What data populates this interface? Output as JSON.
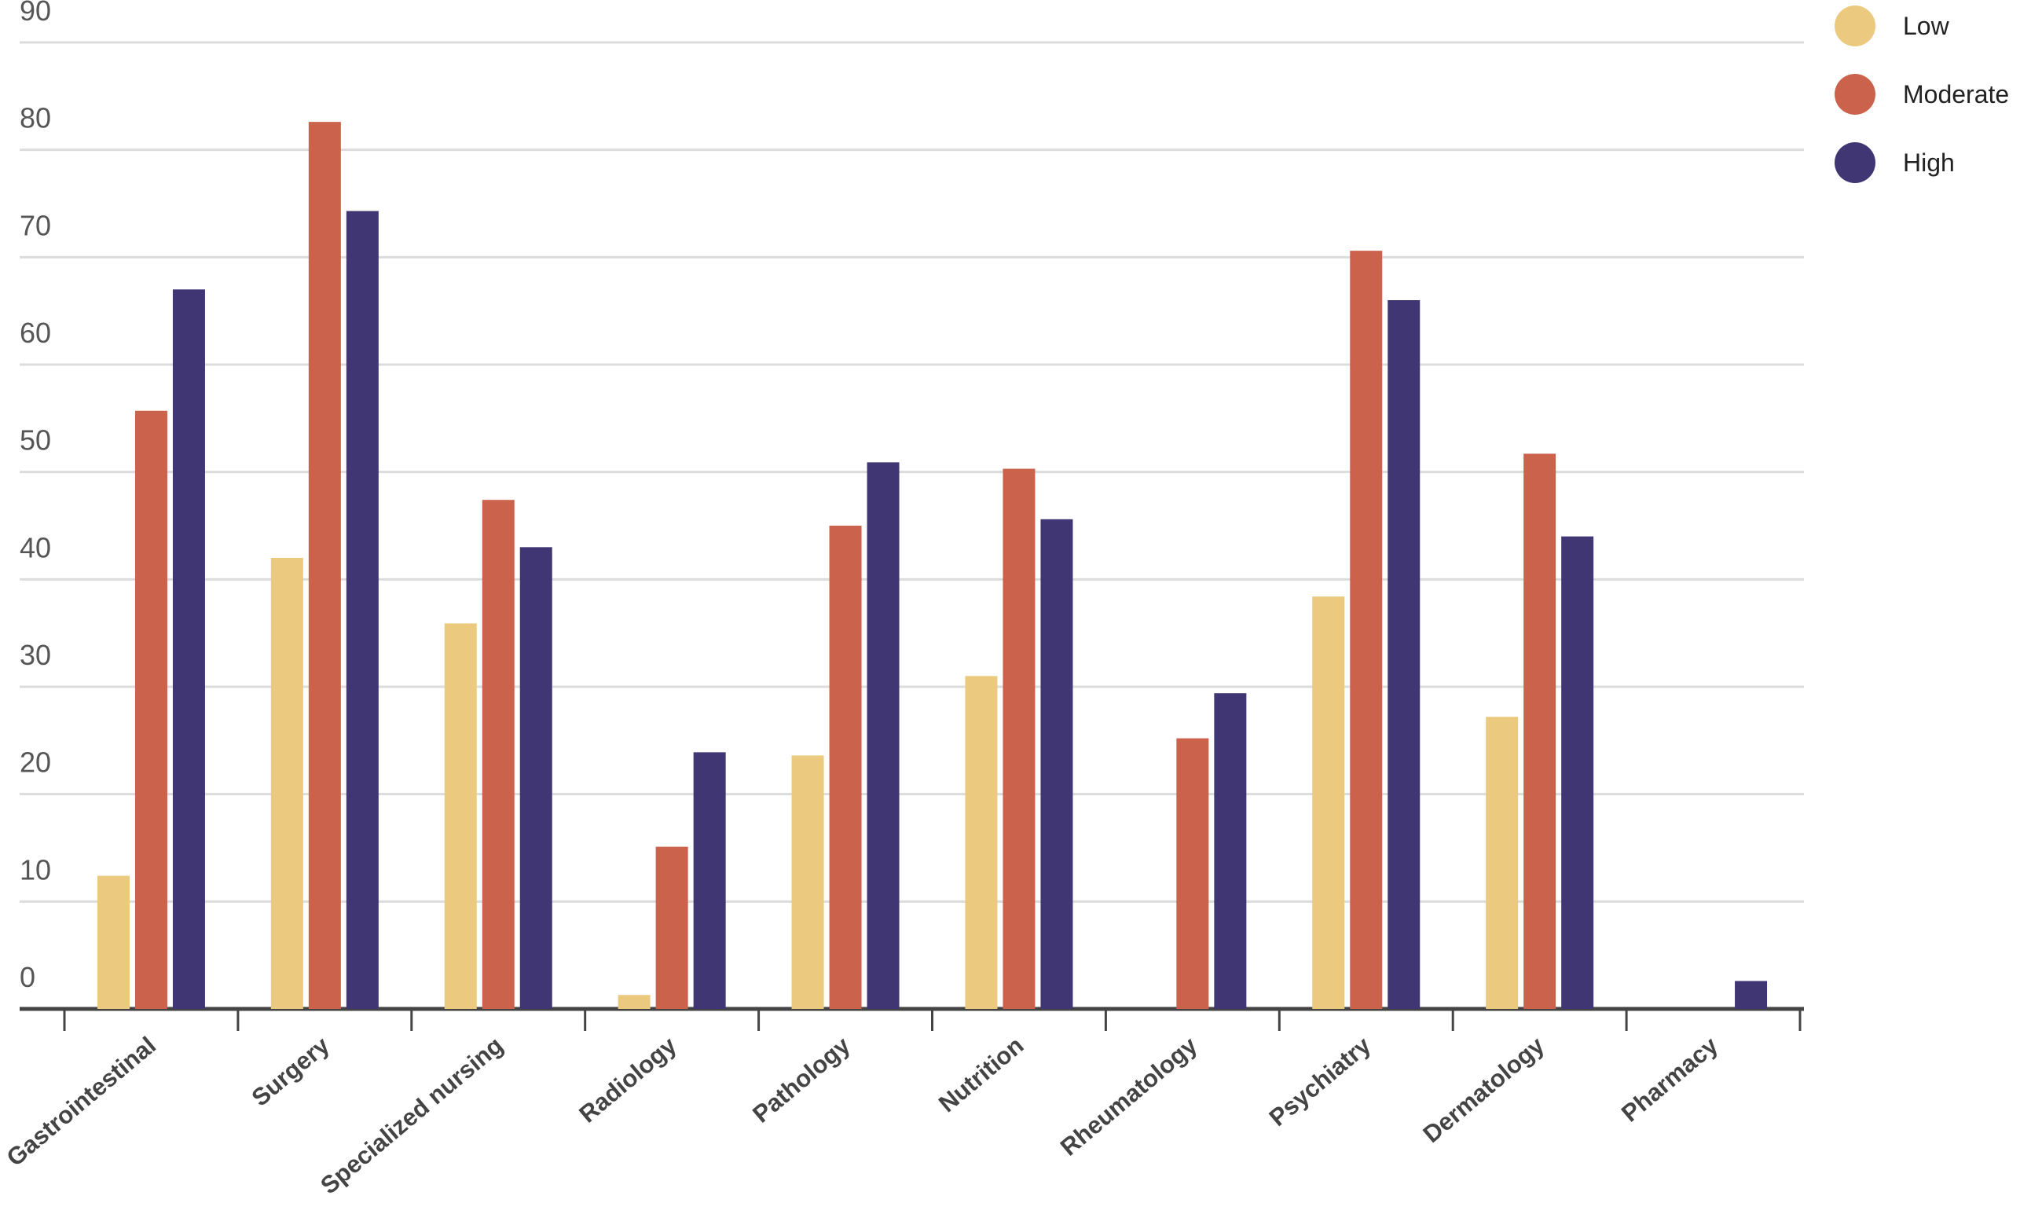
{
  "chart_data": {
    "type": "bar",
    "categories": [
      "Gastrointestinal",
      "Surgery",
      "Specialized nursing",
      "Radiology",
      "Pathology",
      "Nutrition",
      "Rheumatology",
      "Psychiatry",
      "Dermatology",
      "Pharmacy"
    ],
    "series": [
      {
        "name": "Low",
        "color": "#ebc97f",
        "values": [
          12.4,
          42.0,
          35.9,
          1.3,
          23.6,
          31.0,
          0,
          38.4,
          27.2,
          0
        ]
      },
      {
        "name": "Moderate",
        "color": "#cb624b",
        "values": [
          55.7,
          82.6,
          47.4,
          15.1,
          45.0,
          50.3,
          25.2,
          70.6,
          51.7,
          0
        ]
      },
      {
        "name": "High",
        "color": "#413674",
        "values": [
          67.0,
          74.3,
          43.0,
          23.9,
          50.9,
          45.6,
          29.4,
          66.0,
          44.0,
          2.6
        ]
      }
    ],
    "ylim": [
      0,
      90
    ],
    "yticks": [
      0,
      10,
      20,
      30,
      40,
      50,
      60,
      70,
      80,
      90
    ],
    "grid": true,
    "legend": "top-right"
  }
}
